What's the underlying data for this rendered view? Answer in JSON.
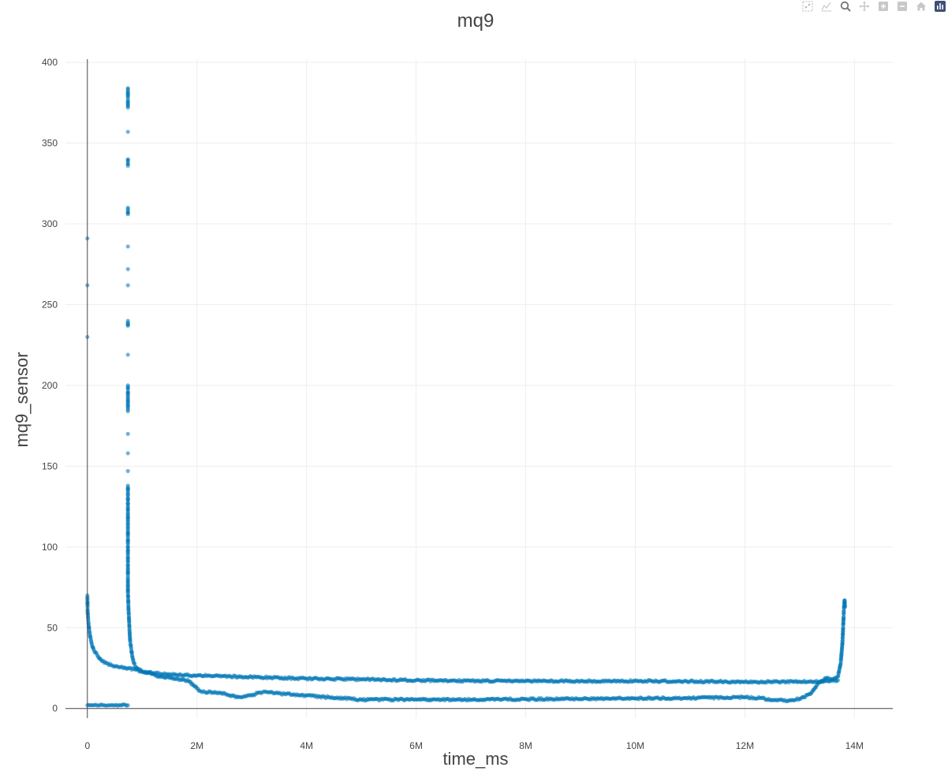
{
  "chart_data": {
    "type": "scatter",
    "title": "mq9",
    "xlabel": "time_ms",
    "ylabel": "mq9_sensor",
    "xlim": [
      -400000,
      14700000
    ],
    "ylim": [
      -6,
      402
    ],
    "xticks": [
      0,
      2000000,
      4000000,
      6000000,
      8000000,
      10000000,
      12000000,
      14000000
    ],
    "xtick_labels": [
      "0",
      "2M",
      "4M",
      "6M",
      "8M",
      "10M",
      "12M",
      "14M"
    ],
    "yticks": [
      0,
      50,
      100,
      150,
      200,
      250,
      300,
      350,
      400
    ],
    "ytick_labels": [
      "0",
      "50",
      "100",
      "150",
      "200",
      "250",
      "300",
      "350",
      "400"
    ],
    "grid": true,
    "marker_color": "#0077b6",
    "series": [
      {
        "values_description": "baseline run at low reading",
        "points": [
          [
            0,
            2
          ],
          [
            100000,
            2
          ],
          [
            200000,
            2
          ],
          [
            300000,
            2
          ],
          [
            400000,
            2
          ],
          [
            500000,
            2
          ],
          [
            600000,
            2
          ],
          [
            740000,
            2
          ]
        ]
      },
      {
        "points": [
          [
            0,
            230
          ],
          [
            0,
            262
          ],
          [
            0,
            291
          ],
          [
            0,
            70
          ],
          [
            0,
            68
          ],
          [
            5000,
            60
          ],
          [
            15000,
            55
          ],
          [
            30000,
            50
          ],
          [
            50000,
            45
          ],
          [
            80000,
            40
          ],
          [
            120000,
            36
          ],
          [
            180000,
            33
          ],
          [
            250000,
            30
          ],
          [
            350000,
            28
          ],
          [
            500000,
            26
          ],
          [
            700000,
            25
          ],
          [
            900000,
            24
          ],
          [
            1100000,
            22
          ],
          [
            1300000,
            20
          ],
          [
            1500000,
            19
          ],
          [
            1700000,
            18
          ],
          [
            1850000,
            17
          ],
          [
            1950000,
            14
          ],
          [
            2050000,
            11
          ],
          [
            2150000,
            10
          ],
          [
            2400000,
            10
          ],
          [
            2600000,
            8
          ],
          [
            2750000,
            7
          ],
          [
            3000000,
            8
          ],
          [
            3150000,
            10
          ],
          [
            3300000,
            10
          ],
          [
            3600000,
            9
          ],
          [
            4000000,
            8
          ],
          [
            4400000,
            7
          ],
          [
            4800000,
            6
          ],
          [
            5000000,
            5.5
          ],
          [
            5500000,
            5.5
          ],
          [
            6000000,
            5.5
          ],
          [
            7000000,
            5.5
          ],
          [
            8000000,
            5.8
          ],
          [
            9000000,
            6
          ],
          [
            10000000,
            6.3
          ],
          [
            11000000,
            6.5
          ],
          [
            12000000,
            7
          ],
          [
            12300000,
            6.5
          ],
          [
            12500000,
            5
          ],
          [
            12800000,
            5
          ],
          [
            13000000,
            6
          ],
          [
            13200000,
            9
          ],
          [
            13350000,
            16
          ],
          [
            13500000,
            19
          ],
          [
            13600000,
            18
          ],
          [
            13700000,
            20
          ],
          [
            13750000,
            28
          ],
          [
            13780000,
            40
          ],
          [
            13800000,
            55
          ],
          [
            13810000,
            63
          ],
          [
            13820000,
            67
          ],
          [
            13830000,
            63
          ]
        ]
      },
      {
        "points": [
          [
            740000,
            384
          ],
          [
            740000,
            381
          ],
          [
            740000,
            373
          ],
          [
            740000,
            372
          ],
          [
            740000,
            357
          ],
          [
            740000,
            340
          ],
          [
            740000,
            336
          ],
          [
            740000,
            310
          ],
          [
            740000,
            306
          ],
          [
            740000,
            286
          ],
          [
            740000,
            272
          ],
          [
            740000,
            262
          ],
          [
            740000,
            240
          ],
          [
            740000,
            237
          ],
          [
            740000,
            219
          ],
          [
            740000,
            200
          ],
          [
            740000,
            192
          ],
          [
            740000,
            184
          ],
          [
            740000,
            170
          ],
          [
            740000,
            158
          ],
          [
            740000,
            147
          ],
          [
            740000,
            138
          ],
          [
            740000,
            130
          ],
          [
            740000,
            123
          ],
          [
            740000,
            117
          ],
          [
            740000,
            112
          ],
          [
            740000,
            108
          ],
          [
            740000,
            104
          ],
          [
            740000,
            100
          ],
          [
            740000,
            96
          ],
          [
            740000,
            92
          ],
          [
            740000,
            88
          ],
          [
            740000,
            85
          ],
          [
            740000,
            82
          ],
          [
            740000,
            78
          ],
          [
            740000,
            75
          ],
          [
            740000,
            72
          ],
          [
            745000,
            68
          ],
          [
            750000,
            62
          ],
          [
            760000,
            55
          ],
          [
            770000,
            48
          ],
          [
            780000,
            42
          ],
          [
            800000,
            37
          ],
          [
            820000,
            32
          ],
          [
            850000,
            28
          ],
          [
            900000,
            25
          ],
          [
            1000000,
            23
          ],
          [
            1200000,
            22
          ],
          [
            1500000,
            21
          ],
          [
            2000000,
            20.5
          ],
          [
            3000000,
            19.5
          ],
          [
            4000000,
            18.5
          ],
          [
            5000000,
            18
          ],
          [
            6000000,
            17.5
          ],
          [
            7000000,
            17
          ],
          [
            8000000,
            17
          ],
          [
            9000000,
            17
          ],
          [
            10000000,
            17
          ],
          [
            11000000,
            16.8
          ],
          [
            12000000,
            16.5
          ],
          [
            13000000,
            16.5
          ],
          [
            13500000,
            17
          ],
          [
            13700000,
            17.5
          ]
        ]
      }
    ]
  },
  "toolbar": {
    "buttons": [
      "box-select-icon",
      "lasso-icon",
      "zoom-icon",
      "pan-icon",
      "zoom-in-icon",
      "zoom-out-icon",
      "reset-axes-icon",
      "plotly-logo-icon"
    ]
  }
}
